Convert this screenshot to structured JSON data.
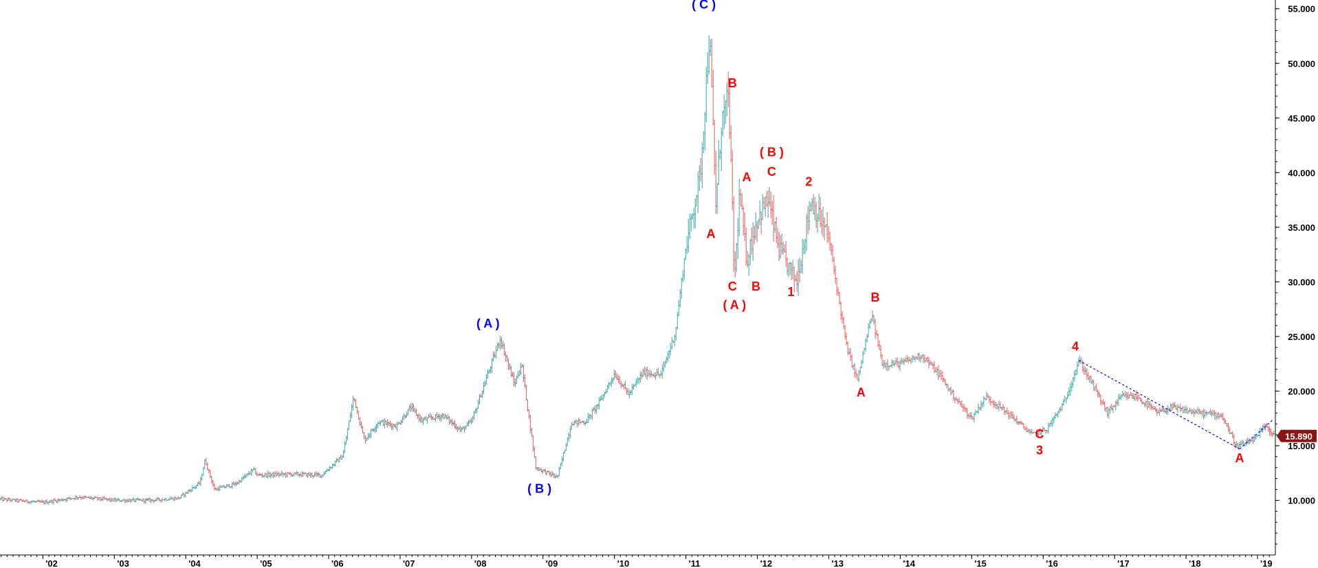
{
  "chart_data": {
    "type": "ohlc",
    "x_ticks": [
      "'02",
      "'03",
      "'04",
      "'05",
      "'06",
      "'07",
      "'08",
      "'09",
      "'10",
      "'11",
      "'12",
      "'13",
      "'14",
      "'15",
      "'16",
      "'17",
      "'18",
      "'19"
    ],
    "y_ticks": [
      "10.000",
      "15.000",
      "20.000",
      "25.000",
      "30.000",
      "35.000",
      "40.000",
      "45.000",
      "50.000",
      "55.000"
    ],
    "y_tick_values": [
      10000,
      15000,
      20000,
      25000,
      30000,
      35000,
      40000,
      45000,
      50000,
      55000
    ],
    "ylim": [
      5000,
      55800
    ],
    "xlim": [
      2001.4,
      2019.25
    ],
    "last_price": {
      "value": 15890,
      "label": "15.890"
    },
    "colors": {
      "up": "#3aa6a6",
      "down": "#e85a5a",
      "primary_labels": "#0000ff",
      "wave_labels": "#ff0000",
      "trendline": "#0000ff",
      "price_tag": "#8b1515",
      "axis": "#000000"
    },
    "series": {
      "date": [
        2001.4,
        2001.6,
        2002.0,
        2002.5,
        2003.0,
        2003.5,
        2003.9,
        2004.2,
        2004.27,
        2004.4,
        2004.7,
        2004.95,
        2005.0,
        2005.5,
        2005.9,
        2006.2,
        2006.35,
        2006.5,
        2006.7,
        2006.95,
        2007.15,
        2007.3,
        2007.6,
        2007.85,
        2008.0,
        2008.23,
        2008.4,
        2008.6,
        2008.7,
        2008.9,
        2009.2,
        2009.4,
        2009.6,
        2009.8,
        2010.0,
        2010.2,
        2010.4,
        2010.65,
        2010.85,
        2011.0,
        2011.2,
        2011.33,
        2011.42,
        2011.5,
        2011.6,
        2011.68,
        2011.75,
        2011.85,
        2012.0,
        2012.15,
        2012.3,
        2012.55,
        2012.75,
        2013.0,
        2013.25,
        2013.4,
        2013.6,
        2013.75,
        2014.0,
        2014.3,
        2014.55,
        2014.75,
        2015.0,
        2015.2,
        2015.5,
        2015.85,
        2016.05,
        2016.3,
        2016.5,
        2016.7,
        2016.9,
        2017.1,
        2017.3,
        2017.6,
        2017.8,
        2018.0,
        2018.2,
        2018.5,
        2018.7,
        2018.85,
        2019.0,
        2019.1,
        2019.25
      ],
      "close": [
        10100,
        10000,
        9800,
        10300,
        10000,
        10000,
        10200,
        11600,
        13700,
        11000,
        11500,
        12800,
        12300,
        12400,
        12300,
        14100,
        19500,
        15500,
        17200,
        16800,
        18500,
        17300,
        17800,
        16400,
        17200,
        21600,
        24800,
        20600,
        22500,
        13000,
        12100,
        17100,
        17200,
        19100,
        21600,
        19700,
        21700,
        21500,
        25300,
        33200,
        39800,
        52800,
        37000,
        44800,
        46900,
        30000,
        38000,
        32000,
        35800,
        37500,
        33000,
        30000,
        37500,
        34000,
        24000,
        21000,
        27000,
        22500,
        22500,
        23300,
        21500,
        19500,
        17500,
        19500,
        18000,
        16000,
        16500,
        19000,
        22800,
        20500,
        18000,
        19500,
        19500,
        18000,
        18500,
        18200,
        18000,
        17800,
        15000,
        15200,
        15800,
        16800,
        15900
      ]
    },
    "labels": [
      {
        "text": "( A )",
        "x": 2008.23,
        "y": 25800,
        "color": "#0000ff"
      },
      {
        "text": "( B )",
        "x": 2008.95,
        "y": 10700,
        "color": "#0000ff"
      },
      {
        "text": "( C )",
        "x": 2011.25,
        "y": 55000,
        "color": "#0000ff"
      },
      {
        "text": "A",
        "x": 2011.35,
        "y": 34000,
        "color": "#ff0000"
      },
      {
        "text": "B",
        "x": 2011.65,
        "y": 47800,
        "color": "#ff0000"
      },
      {
        "text": "C",
        "x": 2011.65,
        "y": 29200,
        "color": "#ff0000"
      },
      {
        "text": "( A )",
        "x": 2011.68,
        "y": 27500,
        "color": "#ff0000"
      },
      {
        "text": "A",
        "x": 2011.85,
        "y": 39200,
        "color": "#ff0000"
      },
      {
        "text": "B",
        "x": 2011.98,
        "y": 29200,
        "color": "#ff0000"
      },
      {
        "text": "( B )",
        "x": 2012.2,
        "y": 41500,
        "color": "#ff0000"
      },
      {
        "text": "C",
        "x": 2012.2,
        "y": 39700,
        "color": "#ff0000"
      },
      {
        "text": "1",
        "x": 2012.47,
        "y": 28700,
        "color": "#ff0000"
      },
      {
        "text": "2",
        "x": 2012.72,
        "y": 38800,
        "color": "#ff0000"
      },
      {
        "text": "B",
        "x": 2013.65,
        "y": 28200,
        "color": "#ff0000"
      },
      {
        "text": "A",
        "x": 2013.45,
        "y": 19500,
        "color": "#ff0000"
      },
      {
        "text": "C",
        "x": 2015.95,
        "y": 15700,
        "color": "#ff0000"
      },
      {
        "text": "3",
        "x": 2015.95,
        "y": 14200,
        "color": "#ff0000"
      },
      {
        "text": "4",
        "x": 2016.45,
        "y": 23700,
        "color": "#ff0000"
      },
      {
        "text": "A",
        "x": 2018.75,
        "y": 13500,
        "color": "#ff0000"
      }
    ],
    "trendlines": [
      {
        "x1": 2016.5,
        "y1": 22800,
        "x2": 2018.75,
        "y2": 14700
      },
      {
        "x1": 2018.75,
        "y1": 14700,
        "x2": 2019.22,
        "y2": 17400
      }
    ]
  }
}
